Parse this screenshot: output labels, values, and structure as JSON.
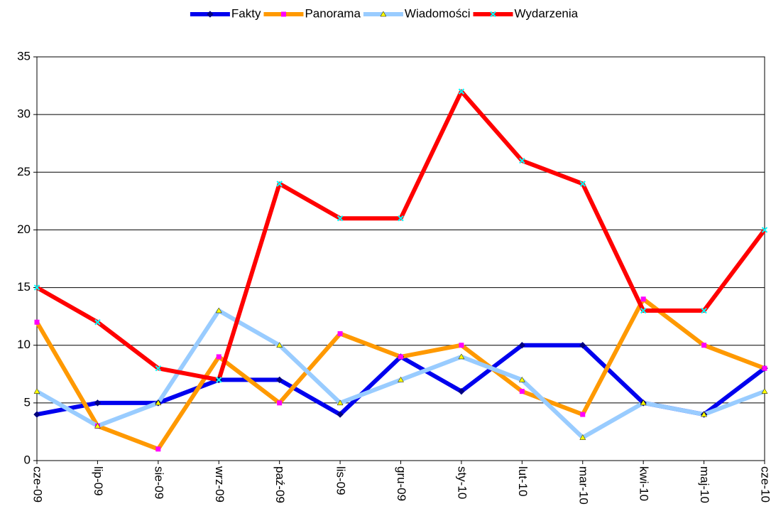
{
  "chart_data": {
    "type": "line",
    "categories": [
      "cze-09",
      "lip-09",
      "sie-09",
      "wrz-09",
      "paź-09",
      "lis-09",
      "gru-09",
      "sty-10",
      "lut-10",
      "mar-10",
      "kwi-10",
      "maj-10",
      "cze-10"
    ],
    "series": [
      {
        "name": "Fakty",
        "color": "#0000ee",
        "marker_color": "#000080",
        "marker": "diamond",
        "values": [
          4,
          5,
          5,
          7,
          7,
          4,
          9,
          6,
          10,
          10,
          5,
          4,
          8
        ]
      },
      {
        "name": "Panorama",
        "color": "#ff9900",
        "marker_color": "#ff00ff",
        "marker": "square",
        "values": [
          12,
          3,
          1,
          9,
          5,
          11,
          9,
          10,
          6,
          4,
          14,
          10,
          8
        ]
      },
      {
        "name": "Wiadomości",
        "color": "#99ccff",
        "marker_color": "#ffff00",
        "marker": "triangle",
        "values": [
          6,
          3,
          5,
          13,
          10,
          5,
          7,
          9,
          7,
          2,
          5,
          4,
          6
        ]
      },
      {
        "name": "Wydarzenia",
        "color": "#ff0000",
        "marker_color": "#00ffff",
        "marker": "x",
        "values": [
          15,
          12,
          8,
          7,
          24,
          21,
          21,
          32,
          26,
          24,
          13,
          13,
          20
        ]
      }
    ],
    "ylim": [
      0,
      35
    ],
    "yticks": [
      0,
      5,
      10,
      15,
      20,
      25,
      30,
      35
    ],
    "grid": true,
    "legend": "top"
  }
}
